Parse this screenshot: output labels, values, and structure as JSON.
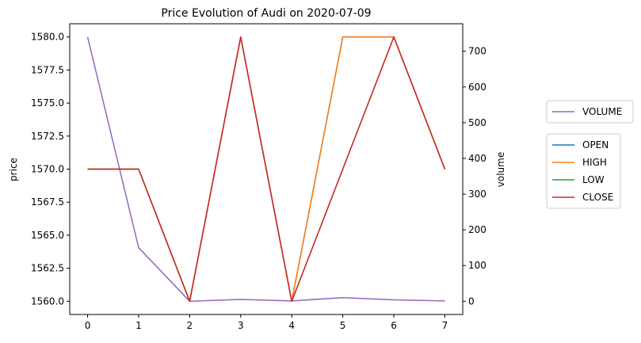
{
  "chart_data": {
    "type": "line",
    "title": "Price Evolution of Audi on 2020-07-09",
    "xlabel": "",
    "ylabel": "price",
    "y2label": "volume",
    "x": [
      0,
      1,
      2,
      3,
      4,
      5,
      6,
      7
    ],
    "x_ticks": [
      "0",
      "1",
      "2",
      "3",
      "4",
      "5",
      "6",
      "7"
    ],
    "xlim": [
      -0.35,
      7.35
    ],
    "ylim": [
      1559.0,
      1581.0
    ],
    "y_ticks": [
      "1560.0",
      "1562.5",
      "1565.0",
      "1567.5",
      "1570.0",
      "1572.5",
      "1575.0",
      "1577.5",
      "1580.0"
    ],
    "y2lim": [
      -37,
      777
    ],
    "y2_ticks": [
      "0",
      "100",
      "200",
      "300",
      "400",
      "500",
      "600",
      "700"
    ],
    "grid": false,
    "series": [
      {
        "name": "OPEN",
        "axis": "left",
        "color": "#1f77b4",
        "values": [
          1570,
          1570,
          1560,
          1580,
          1560,
          1580,
          1580,
          1570
        ]
      },
      {
        "name": "HIGH",
        "axis": "left",
        "color": "#ff7f0e",
        "values": [
          1570,
          1570,
          1560,
          1580,
          1560,
          1580,
          1580,
          1570
        ]
      },
      {
        "name": "LOW",
        "axis": "left",
        "color": "#2ca02c",
        "values": [
          1570,
          1570,
          1560,
          1580,
          1560,
          1570,
          1580,
          1570
        ]
      },
      {
        "name": "CLOSE",
        "axis": "left",
        "color": "#d62728",
        "values": [
          1570,
          1570,
          1560,
          1580,
          1560,
          1570,
          1580,
          1570
        ]
      },
      {
        "name": "VOLUME",
        "axis": "right",
        "color": "#9467bd",
        "values": [
          740,
          150,
          0,
          5,
          1,
          10,
          4,
          1
        ]
      }
    ],
    "legends": [
      {
        "placement": "right",
        "entries": [
          "VOLUME"
        ]
      },
      {
        "placement": "right",
        "entries": [
          "OPEN",
          "HIGH",
          "LOW",
          "CLOSE"
        ]
      }
    ]
  }
}
